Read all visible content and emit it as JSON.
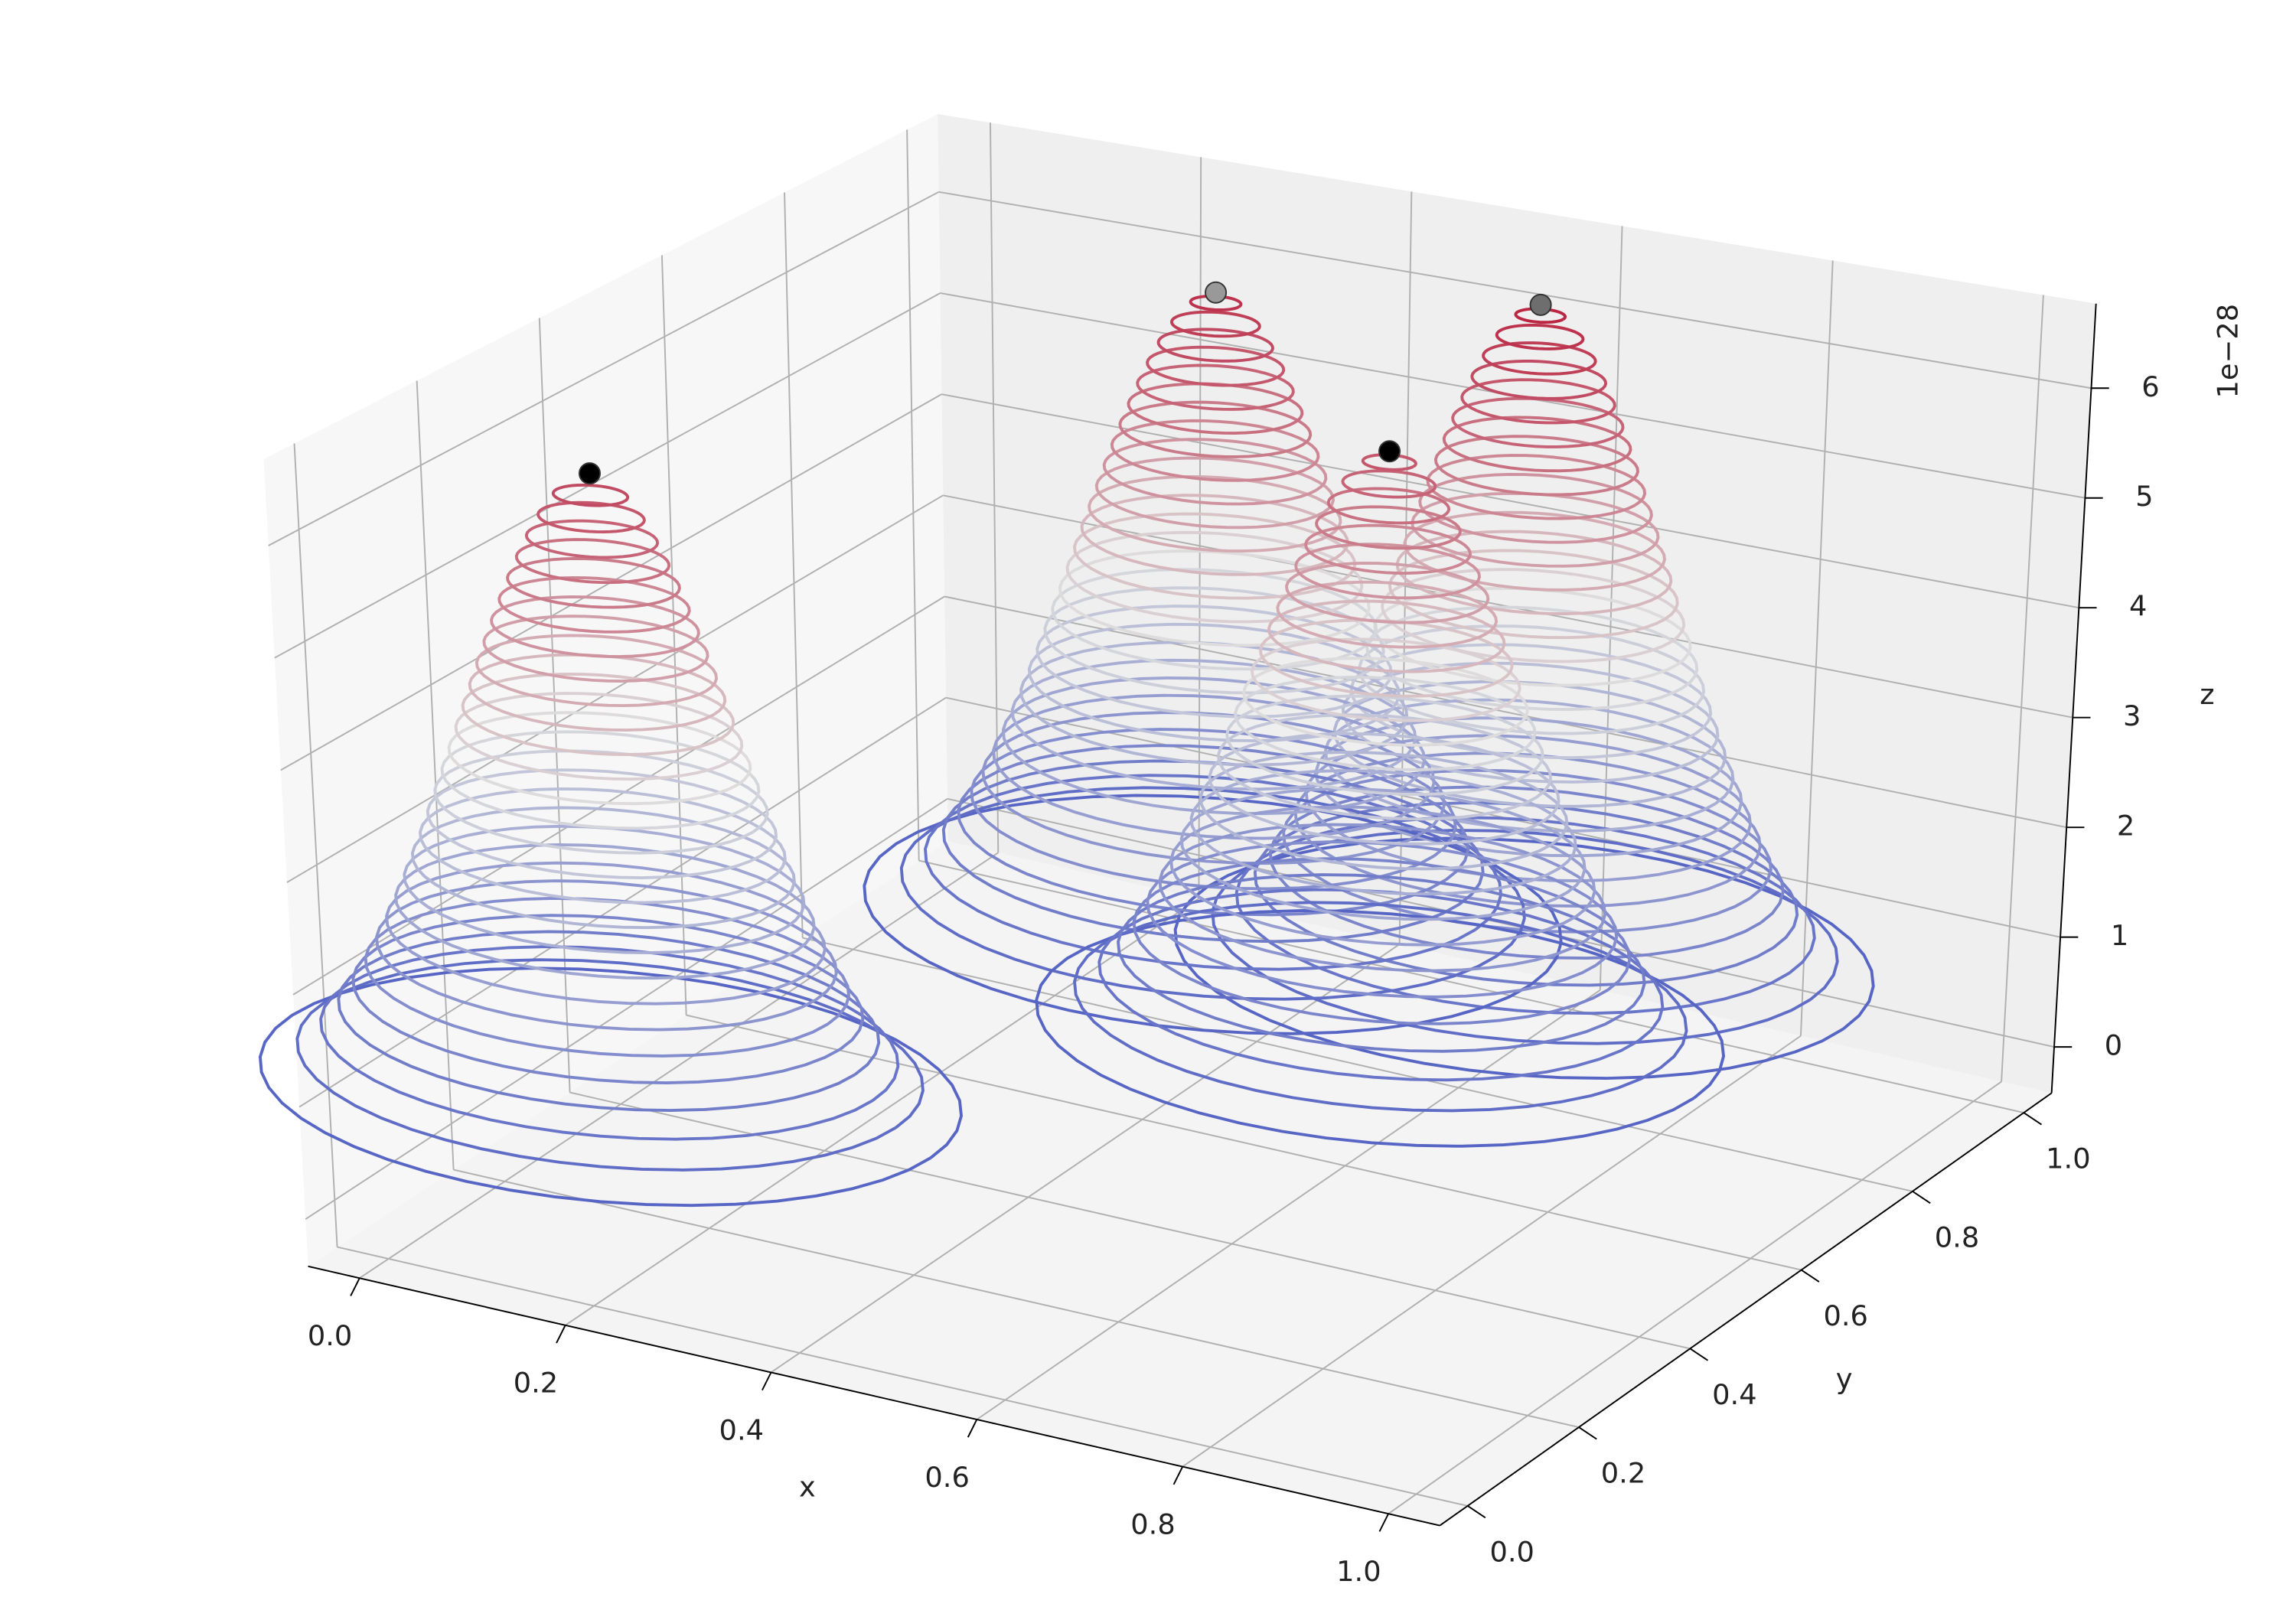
{
  "chart_data": {
    "type": "scatter3d",
    "xlabel": "x",
    "ylabel": "y",
    "zlabel": "z",
    "z_offset_label": "1e−28",
    "xlim": [
      -0.05,
      1.05
    ],
    "ylim": [
      -0.05,
      1.05
    ],
    "zlim": [
      -0.42,
      6.77
    ],
    "xticks": [
      {
        "value": 0,
        "label": "0.0"
      },
      0.2,
      0.4,
      0.6,
      0.8,
      {
        "value": 1,
        "label": "1.0"
      }
    ],
    "yticks": [
      {
        "value": 0,
        "label": "0.0"
      },
      0.2,
      0.4,
      0.6,
      0.8,
      {
        "value": 1,
        "label": "1.0"
      }
    ],
    "zticks": [
      0,
      1,
      2,
      3,
      4,
      5,
      6
    ],
    "grid": true,
    "colormap": "coolwarm",
    "series": [
      {
        "x": [
          0.05,
          0.3,
          0.55,
          0.58
        ],
        "y": [
          0.3,
          0.9,
          0.75,
          0.95
        ],
        "z": [
          5.8,
          6.1,
          5.5,
          6.3
        ],
        "colors": [
          "#000000",
          "#999999",
          "#000000",
          "#6e6e6e"
        ]
      }
    ]
  }
}
